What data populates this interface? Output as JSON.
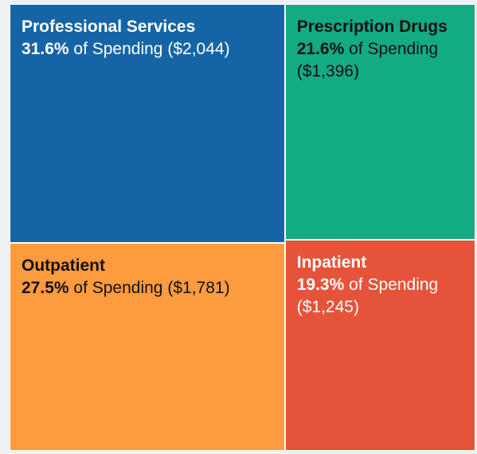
{
  "chart_data": {
    "type": "treemap",
    "categories": [
      "Professional Services",
      "Outpatient",
      "Prescription Drugs",
      "Inpatient"
    ],
    "values": [
      31.6,
      27.5,
      21.6,
      19.3
    ],
    "value_labels": [
      "31.6%",
      "27.5%",
      "21.6%",
      "19.3%"
    ],
    "label_suffix": "of Spending",
    "amounts": [
      2044,
      1781,
      1396,
      1245
    ],
    "amount_labels": [
      "($2,044)",
      "($1,781)",
      "($1,396)",
      "($1,245)"
    ],
    "colors": [
      "#1565a6",
      "#fd9b3f",
      "#13ab82",
      "#e5533a"
    ],
    "text_colors": [
      "#ffffff",
      "#111111",
      "#111111",
      "#ffffff"
    ]
  }
}
